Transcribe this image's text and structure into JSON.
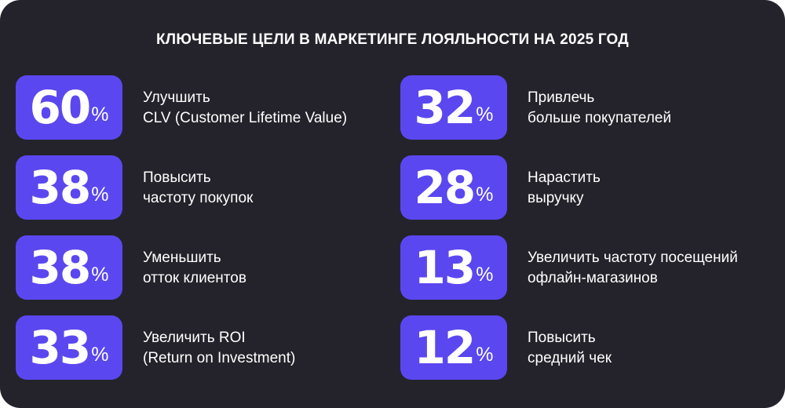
{
  "title": "КЛЮЧЕВЫЕ ЦЕЛИ В МАРКЕТИНГЕ ЛОЯЛЬНОСТИ НА 2025 ГОД",
  "percent_sign": "%",
  "left_column": [
    {
      "value": "60",
      "line1": "Улучшить",
      "line2": "CLV (Customer Lifetime Value)"
    },
    {
      "value": "38",
      "line1": "Повысить",
      "line2": "частоту покупок"
    },
    {
      "value": "38",
      "line1": "Уменьшить",
      "line2": "отток клиентов"
    },
    {
      "value": "33",
      "line1": "Увеличить ROI",
      "line2": "(Return on Investment)"
    }
  ],
  "right_column": [
    {
      "value": "32",
      "line1": "Привлечь",
      "line2": "больше покупателей"
    },
    {
      "value": "28",
      "line1": "Нарастить",
      "line2": "выручку"
    },
    {
      "value": "13",
      "line1": "Увеличить частоту посещений",
      "line2": "офлайн-магазинов"
    },
    {
      "value": "12",
      "line1": "Повысить",
      "line2": "средний чек"
    }
  ],
  "colors": {
    "background": "#24232b",
    "badge": "#5b47f0",
    "text": "#ffffff"
  }
}
